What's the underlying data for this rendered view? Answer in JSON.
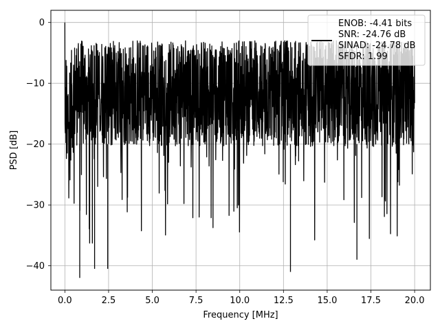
{
  "chart_data": {
    "type": "line",
    "title": "",
    "xlabel": "Frequency [MHz]",
    "ylabel": "PSD [dB]",
    "xlim": [
      -0.8,
      20.9
    ],
    "ylim": [
      -44,
      2
    ],
    "xticks": [
      0.0,
      2.5,
      5.0,
      7.5,
      10.0,
      12.5,
      15.0,
      17.5,
      20.0
    ],
    "xtick_labels": [
      "0.0",
      "2.5",
      "5.0",
      "7.5",
      "10.0",
      "12.5",
      "15.0",
      "17.5",
      "20.0"
    ],
    "yticks": [
      0,
      -10,
      -20,
      -30,
      -40
    ],
    "ytick_labels": [
      "0",
      "−10",
      "−20",
      "−30",
      "−40"
    ],
    "grid": true,
    "legend_position": "top-right",
    "series": [
      {
        "line_color": "#000000",
        "legend_lines": [
          "ENOB: -4.41 bits",
          "SNR: -24.76 dB",
          "SINAD: -24.78 dB",
          "SFDR: 1.99"
        ],
        "x_range": [
          0,
          20
        ],
        "points_count": 2048,
        "peak": {
          "x": 0.0,
          "y": 0.0
        },
        "floor_mean_db": -14,
        "floor_top_db": -3,
        "deep_notches": [
          {
            "x": 0.85,
            "y": -42
          },
          {
            "x": 1.7,
            "y": -40.5
          },
          {
            "x": 2.45,
            "y": -40.5
          },
          {
            "x": 12.9,
            "y": -41
          },
          {
            "x": 16.7,
            "y": -39
          }
        ]
      }
    ]
  }
}
